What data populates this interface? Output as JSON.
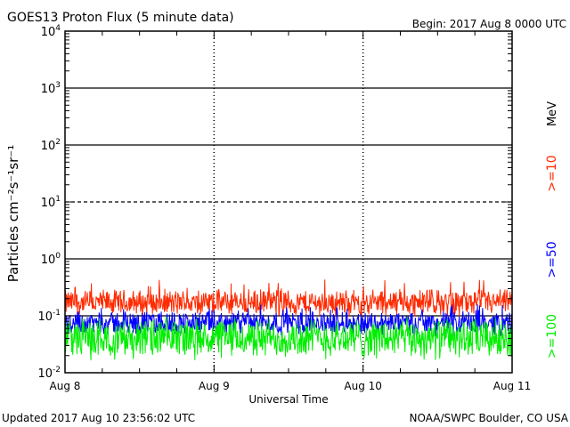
{
  "header": {
    "title": "GOES13 Proton Flux (5 minute data)",
    "begin": "Begin: 2017 Aug 8 0000 UTC"
  },
  "footer": {
    "updated": "Updated 2017 Aug 10 23:56:02 UTC",
    "credit": "NOAA/SWPC Boulder, CO USA"
  },
  "chart_data": {
    "type": "line",
    "title": "GOES13 Proton Flux (5 minute data)",
    "xlabel": "Universal Time",
    "ylabel": "Particles cm⁻²s⁻¹sr⁻¹",
    "yscale": "log",
    "ylim": [
      0.01,
      10000
    ],
    "y_ticks": [
      {
        "value": 0.01,
        "base": "10",
        "exp": "-2"
      },
      {
        "value": 0.1,
        "base": "10",
        "exp": "-1"
      },
      {
        "value": 1,
        "base": "10",
        "exp": "0"
      },
      {
        "value": 10,
        "base": "10",
        "exp": "1"
      },
      {
        "value": 100,
        "base": "10",
        "exp": "2"
      },
      {
        "value": 1000,
        "base": "10",
        "exp": "3"
      },
      {
        "value": 10000,
        "base": "10",
        "exp": "4"
      }
    ],
    "x_ticks": [
      {
        "day": 0,
        "label": "Aug 8"
      },
      {
        "day": 1,
        "label": "Aug 9"
      },
      {
        "day": 2,
        "label": "Aug 10"
      },
      {
        "day": 3,
        "label": "Aug 11"
      }
    ],
    "xlim": [
      0,
      3
    ],
    "threshold_lines": [
      {
        "value": 1000,
        "style": "solid"
      },
      {
        "value": 100,
        "style": "solid"
      },
      {
        "value": 10,
        "style": "dashed"
      },
      {
        "value": 1,
        "style": "solid"
      },
      {
        "value": 0.1,
        "style": "solid"
      }
    ],
    "series": [
      {
        "name": ">=10",
        "color": "#ff2a00",
        "level": 0.17,
        "spread": 0.13,
        "spike_max": 0.45
      },
      {
        "name": ">=50",
        "color": "#0000ff",
        "level": 0.075,
        "spread": 0.12,
        "spike_max": 0.16
      },
      {
        "name": ">=100",
        "color": "#00ee00",
        "level": 0.04,
        "spread": 0.2,
        "spike_max": 0.07
      }
    ],
    "unit_label": "MeV"
  }
}
